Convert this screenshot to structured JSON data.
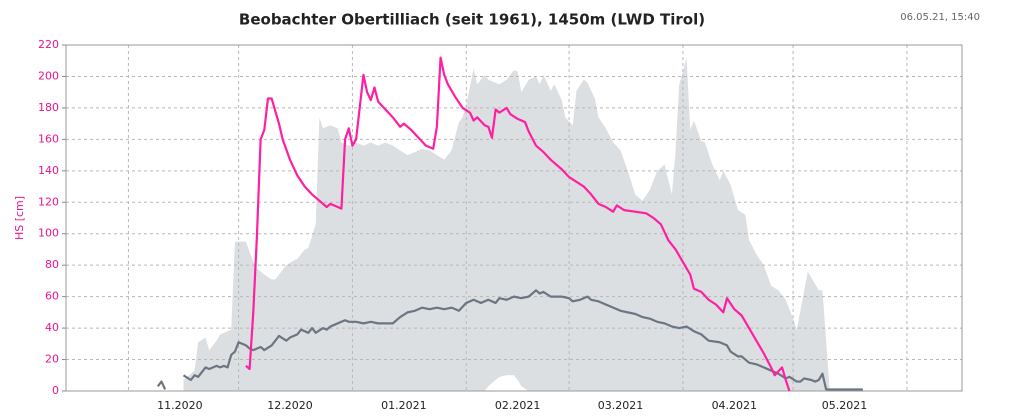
{
  "chart_data": {
    "type": "line",
    "title": "Beobachter Obertilliach (seit 1961), 1450m (LWD Tirol)",
    "timestamp": "06.05.21, 15:40",
    "ylabel": "HS [cm]",
    "axis_color": "#e8168c",
    "grid": true,
    "ylim": [
      0,
      220
    ],
    "yticks": [
      0,
      20,
      40,
      60,
      80,
      100,
      120,
      140,
      160,
      180,
      200,
      220
    ],
    "xlim": [
      0,
      244
    ],
    "xticks": [
      {
        "value": 31,
        "label": "11.2020"
      },
      {
        "value": 61,
        "label": "12.2020"
      },
      {
        "value": 92,
        "label": "01.2021"
      },
      {
        "value": 123,
        "label": "02.2021"
      },
      {
        "value": 151,
        "label": "03.2021"
      },
      {
        "value": 182,
        "label": "04.2021"
      },
      {
        "value": 212,
        "label": "05.2021"
      }
    ],
    "xgrid": [
      17,
      47,
      78,
      109,
      137,
      168,
      198,
      229
    ],
    "band": {
      "color": "#dcdfe2",
      "upper": {
        "x": [
          32,
          35,
          36,
          38,
          39,
          41,
          42,
          45,
          46,
          49,
          51,
          52,
          54,
          56,
          57,
          58,
          60,
          62,
          63,
          65,
          66,
          68,
          69,
          70,
          72,
          74,
          75,
          77,
          79,
          81,
          83,
          85,
          87,
          89,
          91,
          93,
          95,
          97,
          99,
          101,
          103,
          105,
          107,
          108,
          109,
          111,
          112,
          114,
          115,
          118,
          120,
          122,
          123,
          124,
          126,
          128,
          129,
          130,
          132,
          133,
          135,
          136,
          138,
          139,
          141,
          142,
          144,
          145,
          147,
          149,
          151,
          153,
          155,
          157,
          159,
          161,
          163,
          165,
          166,
          167,
          169,
          170,
          171,
          173,
          174,
          176,
          178,
          179,
          181,
          183,
          185,
          186,
          188,
          190,
          192,
          194,
          196,
          198,
          199,
          202,
          203,
          205,
          206,
          208
        ],
        "values": [
          7,
          13,
          31,
          34,
          26,
          32,
          36,
          39,
          95,
          95,
          82,
          78,
          74,
          71,
          71,
          74,
          80,
          83,
          84,
          90,
          91,
          106,
          174,
          167,
          169,
          167,
          158,
          156,
          158,
          156,
          158,
          156,
          158,
          156,
          153,
          150,
          152,
          154,
          153,
          150,
          147,
          153,
          171,
          174,
          182,
          205,
          195,
          201,
          198,
          195,
          198,
          204,
          203,
          190,
          198,
          200,
          195,
          201,
          191,
          195,
          185,
          174,
          169,
          191,
          198,
          196,
          186,
          174,
          167,
          158,
          153,
          140,
          125,
          121,
          128,
          140,
          144,
          125,
          153,
          195,
          212,
          166,
          172,
          159,
          158,
          144,
          134,
          140,
          131,
          115,
          112,
          96,
          87,
          80,
          67,
          64,
          58,
          46,
          39,
          76,
          72,
          64,
          64,
          0
        ]
      },
      "lower": {
        "x": [
          32,
          114,
          115,
          118,
          120,
          122,
          123,
          124,
          126,
          208
        ],
        "values": [
          0,
          0,
          3,
          9,
          10,
          10,
          7,
          3,
          0,
          0
        ]
      }
    },
    "series": [
      {
        "color": "#ff1fa0",
        "x": [
          49,
          50,
          51,
          52,
          53,
          54,
          55,
          56,
          58,
          59,
          61,
          63,
          65,
          67,
          69,
          71,
          72,
          74,
          75,
          76,
          77,
          78,
          79,
          81,
          82,
          83,
          84,
          85,
          87,
          89,
          91,
          92,
          94,
          96,
          98,
          100,
          101,
          102,
          103,
          104,
          106,
          108,
          110,
          111,
          112,
          114,
          115,
          116,
          117,
          118,
          120,
          121,
          123,
          125,
          126,
          128,
          130,
          132,
          135,
          137,
          139,
          141,
          143,
          145,
          147,
          149,
          150,
          152,
          155,
          158,
          160,
          162,
          164,
          166,
          168,
          170,
          171,
          173,
          175,
          177,
          179,
          180,
          182,
          184,
          186,
          188,
          190,
          192,
          193,
          195,
          196,
          197
        ],
        "values": [
          16,
          14,
          50,
          99,
          160,
          166,
          186,
          186,
          170,
          160,
          147,
          137,
          130,
          125,
          121,
          117,
          119,
          117,
          116,
          160,
          167,
          156,
          160,
          201,
          190,
          185,
          193,
          184,
          179,
          174,
          168,
          170,
          166,
          161,
          156,
          154,
          168,
          212,
          201,
          195,
          187,
          180,
          177,
          172,
          174,
          169,
          168,
          161,
          179,
          177,
          180,
          176,
          173,
          171,
          165,
          156,
          152,
          147,
          141,
          136,
          133,
          130,
          125,
          119,
          117,
          114,
          118,
          115,
          114,
          113,
          110,
          106,
          96,
          90,
          82,
          74,
          65,
          63,
          58,
          55,
          50,
          59,
          52,
          48,
          40,
          32,
          24,
          15,
          10,
          15,
          7,
          0
        ]
      },
      {
        "color": "#6b7682",
        "x": [
          25,
          26,
          27,
          29,
          32,
          34,
          35,
          36,
          38,
          39,
          41,
          42,
          43,
          44,
          45,
          46,
          47,
          49,
          50,
          51,
          53,
          54,
          56,
          57,
          58,
          60,
          61,
          63,
          64,
          66,
          67,
          68,
          70,
          71,
          72,
          73,
          75,
          76,
          77,
          79,
          81,
          83,
          85,
          87,
          89,
          91,
          93,
          95,
          97,
          99,
          101,
          103,
          105,
          107,
          109,
          111,
          113,
          115,
          117,
          118,
          120,
          122,
          124,
          126,
          128,
          129,
          130,
          132,
          135,
          137,
          138,
          140,
          142,
          143,
          145,
          147,
          149,
          151,
          153,
          155,
          157,
          159,
          161,
          163,
          165,
          167,
          169,
          171,
          173,
          175,
          178,
          180,
          181,
          183,
          184,
          186,
          188,
          190,
          192,
          194,
          196,
          197,
          199,
          200,
          201,
          203,
          204,
          205,
          206,
          207,
          210,
          217
        ],
        "values": [
          3,
          6,
          1,
          null,
          10,
          7,
          10,
          9,
          15,
          14,
          16,
          15,
          16,
          15,
          23,
          25,
          31,
          29,
          27,
          26,
          28,
          26,
          29,
          32,
          35,
          32,
          34,
          36,
          39,
          37,
          40,
          37,
          40,
          39,
          41,
          42,
          44,
          45,
          44,
          44,
          43,
          44,
          43,
          43,
          43,
          47,
          50,
          51,
          53,
          52,
          53,
          52,
          53,
          51,
          56,
          58,
          56,
          58,
          56,
          59,
          58,
          60,
          59,
          60,
          64,
          62,
          63,
          60,
          60,
          59,
          57,
          58,
          60,
          58,
          57,
          55,
          53,
          51,
          50,
          49,
          47,
          46,
          44,
          43,
          41,
          40,
          41,
          38,
          36,
          32,
          31,
          29,
          25,
          22,
          22,
          18,
          17,
          15,
          13,
          11,
          8,
          9,
          6,
          6,
          8,
          7,
          6,
          7,
          11,
          1,
          1,
          1
        ]
      }
    ]
  }
}
